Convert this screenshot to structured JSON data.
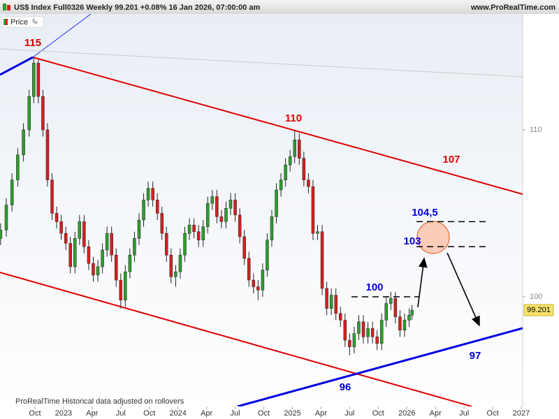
{
  "header": {
    "title": "US$ Index Full0326 Weekly 99.201 +0.08% 16 Jan 2026, 07:00:00 am",
    "site": "www.ProRealTime.com"
  },
  "legend": {
    "label": "Price"
  },
  "footer": {
    "brand": "ProRealTime",
    "note": "Historical data adjusted on rollovers"
  },
  "chart_data": {
    "type": "candlestick",
    "up_color": "#2e9e2e",
    "down_color": "#d42020",
    "xlim": [
      2022.445,
      2027.012
    ],
    "ylim": [
      93.43,
      116.86
    ],
    "xticks": [
      {
        "value": 2022.75,
        "label": "Oct"
      },
      {
        "value": 2023,
        "label": "2023"
      },
      {
        "value": 2023.25,
        "label": "Apr"
      },
      {
        "value": 2023.5,
        "label": "Jul"
      },
      {
        "value": 2023.75,
        "label": "Oct"
      },
      {
        "value": 2024,
        "label": "2024"
      },
      {
        "value": 2024.25,
        "label": "Apr"
      },
      {
        "value": 2024.5,
        "label": "Jul"
      },
      {
        "value": 2024.75,
        "label": "Oct"
      },
      {
        "value": 2025,
        "label": "2025"
      },
      {
        "value": 2025.25,
        "label": "Apr"
      },
      {
        "value": 2025.5,
        "label": "Jul"
      },
      {
        "value": 2025.75,
        "label": "Oct"
      },
      {
        "value": 2026,
        "label": "2026"
      },
      {
        "value": 2026.25,
        "label": "Apr"
      },
      {
        "value": 2026.5,
        "label": "Jul"
      },
      {
        "value": 2026.75,
        "label": "Oct"
      },
      {
        "value": 2027,
        "label": "2027"
      }
    ],
    "yticks": [
      100,
      110
    ],
    "grid": false,
    "x": [
      2022.45,
      2022.5,
      2022.55,
      2022.6,
      2022.65,
      2022.7,
      2022.74,
      2022.78,
      2022.82,
      2022.86,
      2022.9,
      2022.94,
      2022.98,
      2023.02,
      2023.06,
      2023.1,
      2023.14,
      2023.18,
      2023.22,
      2023.26,
      2023.3,
      2023.34,
      2023.38,
      2023.42,
      2023.46,
      2023.5,
      2023.54,
      2023.58,
      2023.62,
      2023.66,
      2023.7,
      2023.74,
      2023.78,
      2023.82,
      2023.86,
      2023.9,
      2023.94,
      2023.98,
      2024.02,
      2024.06,
      2024.1,
      2024.14,
      2024.18,
      2024.22,
      2024.26,
      2024.3,
      2024.34,
      2024.38,
      2024.42,
      2024.46,
      2024.5,
      2024.54,
      2024.58,
      2024.62,
      2024.66,
      2024.7,
      2024.74,
      2024.78,
      2024.82,
      2024.86,
      2024.9,
      2024.94,
      2024.98,
      2025.02,
      2025.06,
      2025.1,
      2025.14,
      2025.18,
      2025.22,
      2025.26,
      2025.3,
      2025.34,
      2025.38,
      2025.42,
      2025.46,
      2025.5,
      2025.54,
      2025.58,
      2025.62,
      2025.66,
      2025.7,
      2025.74,
      2025.78,
      2025.82,
      2025.86,
      2025.9,
      2025.94,
      2025.98,
      2026.02,
      2026.045
    ],
    "ohlc": [
      [
        103.5,
        104.4,
        103.1,
        104
      ],
      [
        104,
        105.9,
        103.6,
        105.5
      ],
      [
        105.5,
        107.4,
        105.1,
        107
      ],
      [
        107,
        108.9,
        106.6,
        108.5
      ],
      [
        108.5,
        110.4,
        108.1,
        110
      ],
      [
        110,
        112.4,
        109.6,
        112
      ],
      [
        112,
        114.35,
        111.6,
        114
      ],
      [
        114,
        114.2,
        111.6,
        112
      ],
      [
        112,
        112.4,
        109.6,
        110
      ],
      [
        110,
        110.4,
        106.6,
        107
      ],
      [
        107,
        107.4,
        104.6,
        105
      ],
      [
        105,
        105.4,
        104.1,
        104.5
      ],
      [
        104.5,
        104.9,
        103.4,
        103.8
      ],
      [
        103.8,
        104.2,
        102.8,
        103.2
      ],
      [
        103.2,
        103.6,
        101.4,
        101.8
      ],
      [
        101.8,
        103.9,
        101.4,
        103.5
      ],
      [
        103.5,
        104.9,
        103.1,
        104.5
      ],
      [
        104.5,
        104.9,
        102.6,
        103
      ],
      [
        103,
        103.4,
        101.6,
        102
      ],
      [
        102,
        102.4,
        100.9,
        101.3
      ],
      [
        101.3,
        102.2,
        100.9,
        101.8
      ],
      [
        101.8,
        103.2,
        101.4,
        102.8
      ],
      [
        102.8,
        104.2,
        102.4,
        103.8
      ],
      [
        103.8,
        104.2,
        102.1,
        102.5
      ],
      [
        102.5,
        102.9,
        100.6,
        101
      ],
      [
        101,
        101.4,
        99.3,
        99.8
      ],
      [
        99.8,
        101.9,
        99.4,
        101.5
      ],
      [
        101.5,
        102.9,
        101.1,
        102.5
      ],
      [
        102.5,
        103.9,
        102.1,
        103.5
      ],
      [
        103.5,
        105,
        103.1,
        104.6
      ],
      [
        104.6,
        106.2,
        104.2,
        105.8
      ],
      [
        105.8,
        106.9,
        105.4,
        106.5
      ],
      [
        106.5,
        106.9,
        105.4,
        105.8
      ],
      [
        105.8,
        106.2,
        104.6,
        105
      ],
      [
        105,
        105.4,
        103.4,
        103.8
      ],
      [
        103.8,
        104.2,
        102.1,
        102.5
      ],
      [
        102.5,
        102.9,
        100.8,
        101.2
      ],
      [
        101.2,
        101.9,
        100.6,
        101.5
      ],
      [
        101.5,
        102.9,
        101.1,
        102.5
      ],
      [
        102.5,
        104.2,
        102.1,
        103.8
      ],
      [
        103.8,
        104.7,
        103.4,
        104.3
      ],
      [
        104.3,
        104.7,
        103.5,
        103.9
      ],
      [
        103.9,
        104.3,
        103,
        103.4
      ],
      [
        103.4,
        104.6,
        103,
        104.2
      ],
      [
        104.2,
        106,
        103.8,
        105.6
      ],
      [
        105.6,
        106.4,
        105.2,
        106
      ],
      [
        106,
        106.4,
        104.4,
        104.8
      ],
      [
        104.8,
        105.2,
        104.1,
        104.5
      ],
      [
        104.5,
        105.7,
        104.1,
        105.3
      ],
      [
        105.3,
        106.2,
        104.9,
        105.8
      ],
      [
        105.8,
        106.2,
        104.5,
        104.9
      ],
      [
        104.9,
        105.3,
        103.2,
        103.6
      ],
      [
        103.6,
        104,
        101.9,
        102.3
      ],
      [
        102.3,
        102.7,
        100.6,
        101
      ],
      [
        101,
        101.4,
        100.2,
        100.6
      ],
      [
        100.6,
        101,
        99.8,
        100.4
      ],
      [
        100.4,
        102,
        100,
        101.6
      ],
      [
        101.6,
        103.8,
        101.2,
        103.4
      ],
      [
        103.4,
        105.2,
        103,
        104.8
      ],
      [
        104.8,
        106.8,
        104.4,
        106.4
      ],
      [
        106.4,
        107.4,
        106,
        107
      ],
      [
        107,
        108.3,
        106.6,
        107.9
      ],
      [
        107.9,
        108.8,
        107.5,
        108.4
      ],
      [
        108.4,
        110,
        108,
        109.4
      ],
      [
        109.4,
        109.8,
        107.9,
        108.3
      ],
      [
        108.3,
        108.7,
        106.6,
        107
      ],
      [
        107,
        107.4,
        106.2,
        106.6
      ],
      [
        106.6,
        107,
        103.4,
        103.8
      ],
      [
        103.8,
        104.3,
        103.4,
        103.9
      ],
      [
        103.9,
        104.3,
        100.1,
        100.5
      ],
      [
        100.5,
        100.9,
        98.9,
        99.3
      ],
      [
        99.3,
        100.5,
        98.9,
        100.1
      ],
      [
        100.1,
        100.5,
        98.6,
        99
      ],
      [
        99,
        99.4,
        98.2,
        98.6
      ],
      [
        98.6,
        99,
        97,
        97.4
      ],
      [
        97.4,
        97.8,
        96.5,
        97
      ],
      [
        97,
        98.2,
        96.6,
        97.8
      ],
      [
        97.8,
        98.9,
        97.4,
        98.5
      ],
      [
        98.5,
        98.9,
        97.2,
        97.6
      ],
      [
        97.6,
        98.5,
        97.2,
        98.1
      ],
      [
        98.1,
        98.5,
        97.2,
        97.6
      ],
      [
        97.6,
        98,
        96.8,
        97.2
      ],
      [
        97.2,
        99,
        96.8,
        98.6
      ],
      [
        98.6,
        100,
        98.2,
        99.6
      ],
      [
        99.6,
        100.3,
        99.2,
        99.9
      ],
      [
        99.9,
        100.3,
        98.4,
        98.8
      ],
      [
        98.8,
        99.2,
        97.6,
        98
      ],
      [
        98,
        99,
        97.6,
        98.6
      ],
      [
        98.6,
        99.3,
        98.2,
        98.9
      ],
      [
        98.9,
        99.5,
        98.6,
        99.201
      ]
    ],
    "lines": [
      {
        "color": "#e00000",
        "style": "solid",
        "points": [
          [
            2022.732,
            114.35
          ],
          [
            2027.012,
            106.15
          ]
        ]
      },
      {
        "color": "#e00000",
        "style": "solid",
        "points": [
          [
            2022.445,
            101.46
          ],
          [
            2026.566,
            93.43
          ]
        ]
      },
      {
        "color": "#0000e0",
        "style": "thick",
        "points": [
          [
            2024.521,
            93.43
          ],
          [
            2027.012,
            98.12
          ]
        ]
      },
      {
        "color": "#0000e0",
        "style": "thick",
        "points": [
          [
            2022.445,
            113.3
          ],
          [
            2022.732,
            114.35
          ]
        ]
      },
      {
        "color": "#2030e0",
        "style": "thin",
        "points": [
          [
            2022.732,
            114.35
          ],
          [
            2023.269,
            117.1
          ]
        ]
      },
      {
        "color": "#c8c8c8",
        "style": "thin",
        "points": [
          [
            2022.445,
            114.85
          ],
          [
            2027.012,
            113.18
          ]
        ]
      },
      {
        "color": "#000000",
        "style": "dashed",
        "points": [
          [
            2025.516,
            100
          ],
          [
            2026.108,
            100
          ]
        ]
      },
      {
        "color": "#000000",
        "style": "dashed",
        "points": [
          [
            2026.084,
            104.5
          ],
          [
            2026.688,
            104.5
          ]
        ]
      },
      {
        "color": "#000000",
        "style": "dashed",
        "points": [
          [
            2026.084,
            103
          ],
          [
            2026.688,
            103
          ]
        ]
      }
    ],
    "annotations": [
      "115",
      "110",
      "107",
      "104,5",
      "103",
      "100",
      "97",
      "96"
    ]
  }
}
